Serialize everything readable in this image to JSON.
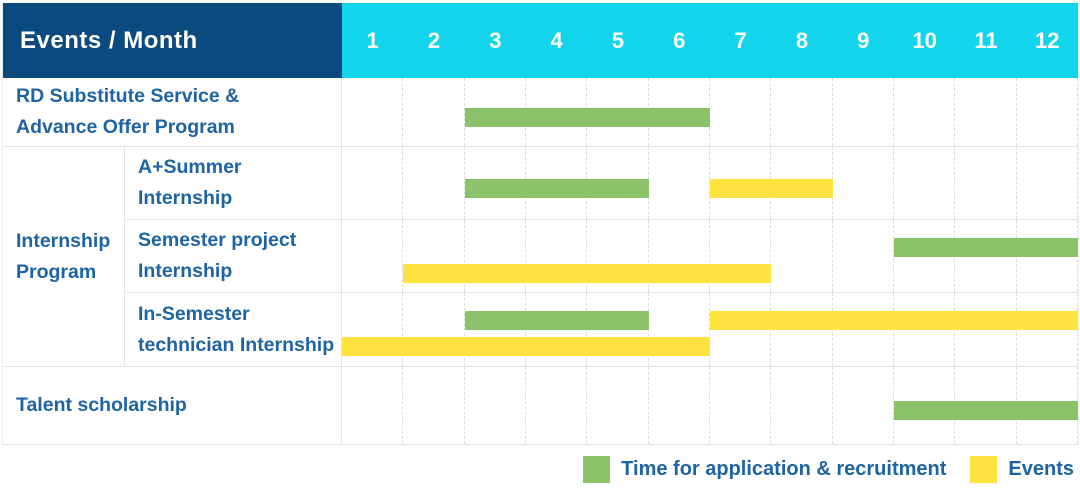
{
  "header": {
    "label": "Events / Month",
    "months": [
      "1",
      "2",
      "3",
      "4",
      "5",
      "6",
      "7",
      "8",
      "9",
      "10",
      "11",
      "12"
    ]
  },
  "colors": {
    "header_navy": "#0b4a7e",
    "header_cyan": "#12d4ea",
    "bar_green": "#8bc36a",
    "bar_yellow": "#ffe240",
    "label_blue": "#1e63a4"
  },
  "legend": [
    {
      "color": "green",
      "label": "Time for application & recruitment"
    },
    {
      "color": "yellow",
      "label": "Events"
    }
  ],
  "chart_data": {
    "type": "gantt",
    "title": "Events / Month",
    "x_axis": {
      "label": "Month",
      "ticks": [
        1,
        2,
        3,
        4,
        5,
        6,
        7,
        8,
        9,
        10,
        11,
        12
      ]
    },
    "series_legend": {
      "green": "Time for application & recruitment",
      "yellow": "Events"
    },
    "rows": [
      {
        "kind": "simple",
        "label_lines": [
          "RD Substitute Service &",
          "Advance Offer Program"
        ],
        "label": "RD Substitute Service & Advance Offer Program",
        "bars": [
          {
            "series": "Time for application & recruitment",
            "color": "green",
            "start_month": 3,
            "end_month": 6,
            "lane": "single"
          }
        ]
      },
      {
        "kind": "group",
        "group_lines": [
          "Internship",
          "Program"
        ],
        "group_label": "Internship Program",
        "children": [
          {
            "label_lines": [
              "A+Summer",
              "Internship"
            ],
            "label": "A+Summer Internship",
            "bars": [
              {
                "series": "Time for application & recruitment",
                "color": "green",
                "start_month": 3,
                "end_month": 5,
                "lane": "single"
              },
              {
                "series": "Events",
                "color": "yellow",
                "start_month": 7,
                "end_month": 8,
                "lane": "single"
              }
            ]
          },
          {
            "label_lines": [
              "Semester project",
              "Internship"
            ],
            "label": "Semester project Internship",
            "bars": [
              {
                "series": "Time for application & recruitment",
                "color": "green",
                "start_month": 10,
                "end_month": 12,
                "lane": "top"
              },
              {
                "series": "Events",
                "color": "yellow",
                "start_month": 2,
                "end_month": 7,
                "lane": "bottom"
              }
            ]
          },
          {
            "label_lines": [
              "In-Semester",
              "technician Internship"
            ],
            "label": "In-Semester technician Internship",
            "bars": [
              {
                "series": "Time for application & recruitment",
                "color": "green",
                "start_month": 3,
                "end_month": 5,
                "lane": "top"
              },
              {
                "series": "Events",
                "color": "yellow",
                "start_month": 7,
                "end_month": 12,
                "lane": "top"
              },
              {
                "series": "Events",
                "color": "yellow",
                "start_month": 1,
                "end_month": 6,
                "lane": "bottom"
              }
            ]
          }
        ]
      },
      {
        "kind": "simple",
        "label_lines": [
          "Talent scholarship"
        ],
        "label": "Talent scholarship",
        "bars": [
          {
            "series": "Time for application & recruitment",
            "color": "green",
            "start_month": 10,
            "end_month": 12,
            "lane": "single"
          }
        ]
      }
    ]
  }
}
